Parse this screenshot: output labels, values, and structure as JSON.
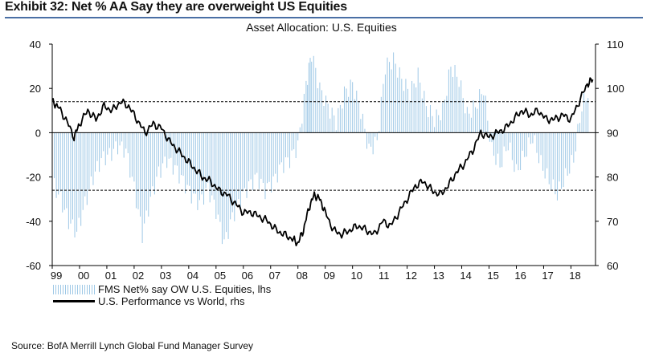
{
  "header": {
    "exhibit_title": "Exhibit 32: Net % AA Say they are overweight US Equities",
    "chart_title": "Asset Allocation: U.S. Equities"
  },
  "legend": {
    "bars_label": "FMS Net% say OW U.S. Equities, lhs",
    "line_label": "U.S. Performance vs World, rhs"
  },
  "source": "Source: BofA Merrill Lynch Global Fund Manager Survey",
  "colors": {
    "bars": "#9ec8e6",
    "line": "#000000",
    "axis": "#000000"
  },
  "chart_data": {
    "type": "bar+line",
    "categories": [
      "99",
      "00",
      "01",
      "02",
      "03",
      "04",
      "05",
      "06",
      "07",
      "08",
      "09",
      "10",
      "11",
      "12",
      "13",
      "14",
      "15",
      "16",
      "17",
      "18"
    ],
    "x_range": [
      1999.0,
      2018.9
    ],
    "y_left": {
      "range": [
        -60,
        40
      ],
      "ticks": [
        "40",
        "20",
        "0",
        "-20",
        "-40",
        "-60"
      ],
      "tick_values": [
        40,
        20,
        0,
        -20,
        -40,
        -60
      ]
    },
    "y_right": {
      "range": [
        60,
        110
      ],
      "ticks": [
        "110",
        "100",
        "90",
        "80",
        "70",
        "60"
      ],
      "tick_values": [
        110,
        100,
        90,
        80,
        70,
        60
      ]
    },
    "reference_lines_lhs": [
      14,
      -26
    ],
    "series": [
      {
        "name": "FMS Net% say OW U.S. Equities, lhs",
        "kind": "bar",
        "axis": "left",
        "points": [
          [
            1999.0,
            -22
          ],
          [
            1999.3,
            -30
          ],
          [
            1999.6,
            -40
          ],
          [
            1999.9,
            -45
          ],
          [
            2000.2,
            -32
          ],
          [
            2000.5,
            -20
          ],
          [
            2000.8,
            -12
          ],
          [
            2001.1,
            -10
          ],
          [
            2001.4,
            -6
          ],
          [
            2001.7,
            -8
          ],
          [
            2002.0,
            -25
          ],
          [
            2002.3,
            -46
          ],
          [
            2002.6,
            -30
          ],
          [
            2002.9,
            -18
          ],
          [
            2003.2,
            -12
          ],
          [
            2003.5,
            -16
          ],
          [
            2003.8,
            -22
          ],
          [
            2004.1,
            -28
          ],
          [
            2004.4,
            -32
          ],
          [
            2004.7,
            -25
          ],
          [
            2005.0,
            -35
          ],
          [
            2005.3,
            -50
          ],
          [
            2005.6,
            -38
          ],
          [
            2005.9,
            -30
          ],
          [
            2006.2,
            -24
          ],
          [
            2006.5,
            -20
          ],
          [
            2006.8,
            -26
          ],
          [
            2007.1,
            -22
          ],
          [
            2007.4,
            -15
          ],
          [
            2007.7,
            -12
          ],
          [
            2008.0,
            -6
          ],
          [
            2008.3,
            22
          ],
          [
            2008.5,
            36
          ],
          [
            2008.8,
            20
          ],
          [
            2009.1,
            12
          ],
          [
            2009.4,
            5
          ],
          [
            2009.7,
            18
          ],
          [
            2010.0,
            22
          ],
          [
            2010.3,
            10
          ],
          [
            2010.6,
            -8
          ],
          [
            2010.9,
            -4
          ],
          [
            2011.2,
            30
          ],
          [
            2011.5,
            33
          ],
          [
            2011.8,
            24
          ],
          [
            2012.1,
            18
          ],
          [
            2012.4,
            26
          ],
          [
            2012.7,
            12
          ],
          [
            2013.0,
            6
          ],
          [
            2013.3,
            10
          ],
          [
            2013.6,
            30
          ],
          [
            2013.9,
            24
          ],
          [
            2014.2,
            8
          ],
          [
            2014.5,
            12
          ],
          [
            2014.8,
            20
          ],
          [
            2015.1,
            -8
          ],
          [
            2015.4,
            -15
          ],
          [
            2015.7,
            -5
          ],
          [
            2016.0,
            -18
          ],
          [
            2016.3,
            -10
          ],
          [
            2016.6,
            -2
          ],
          [
            2016.9,
            -14
          ],
          [
            2017.2,
            -22
          ],
          [
            2017.5,
            -28
          ],
          [
            2017.8,
            -20
          ],
          [
            2018.1,
            -12
          ],
          [
            2018.4,
            12
          ],
          [
            2018.7,
            20
          ]
        ]
      },
      {
        "name": "U.S. Performance vs World, rhs",
        "kind": "line",
        "axis": "right",
        "points": [
          [
            1999.0,
            97
          ],
          [
            1999.2,
            96
          ],
          [
            1999.5,
            93
          ],
          [
            1999.8,
            89
          ],
          [
            2000.0,
            92
          ],
          [
            2000.3,
            95
          ],
          [
            2000.6,
            93
          ],
          [
            2000.9,
            96
          ],
          [
            2001.2,
            95
          ],
          [
            2001.5,
            97
          ],
          [
            2001.8,
            96
          ],
          [
            2002.1,
            93
          ],
          [
            2002.4,
            90
          ],
          [
            2002.7,
            92
          ],
          [
            2003.0,
            91
          ],
          [
            2003.3,
            88
          ],
          [
            2003.6,
            86
          ],
          [
            2003.9,
            84
          ],
          [
            2004.2,
            82
          ],
          [
            2004.5,
            80
          ],
          [
            2004.8,
            79
          ],
          [
            2005.1,
            77
          ],
          [
            2005.4,
            76
          ],
          [
            2005.7,
            74
          ],
          [
            2006.0,
            72
          ],
          [
            2006.3,
            72
          ],
          [
            2006.6,
            71
          ],
          [
            2006.9,
            70
          ],
          [
            2007.2,
            68
          ],
          [
            2007.5,
            67
          ],
          [
            2007.8,
            66
          ],
          [
            2008.0,
            65
          ],
          [
            2008.2,
            68
          ],
          [
            2008.4,
            73
          ],
          [
            2008.6,
            76
          ],
          [
            2008.8,
            75
          ],
          [
            2009.0,
            72
          ],
          [
            2009.3,
            68
          ],
          [
            2009.6,
            67
          ],
          [
            2009.9,
            68
          ],
          [
            2010.2,
            69
          ],
          [
            2010.5,
            68
          ],
          [
            2010.8,
            67
          ],
          [
            2011.1,
            70
          ],
          [
            2011.4,
            69
          ],
          [
            2011.7,
            72
          ],
          [
            2012.0,
            75
          ],
          [
            2012.3,
            78
          ],
          [
            2012.6,
            79
          ],
          [
            2012.9,
            77
          ],
          [
            2013.2,
            76
          ],
          [
            2013.5,
            78
          ],
          [
            2013.8,
            81
          ],
          [
            2014.1,
            83
          ],
          [
            2014.4,
            86
          ],
          [
            2014.7,
            90
          ],
          [
            2015.0,
            89
          ],
          [
            2015.3,
            90
          ],
          [
            2015.6,
            91
          ],
          [
            2015.9,
            93
          ],
          [
            2016.2,
            95
          ],
          [
            2016.5,
            94
          ],
          [
            2016.8,
            95
          ],
          [
            2017.1,
            93
          ],
          [
            2017.4,
            93
          ],
          [
            2017.7,
            94
          ],
          [
            2018.0,
            93
          ],
          [
            2018.3,
            97
          ],
          [
            2018.6,
            101
          ],
          [
            2018.8,
            102
          ]
        ]
      }
    ]
  }
}
